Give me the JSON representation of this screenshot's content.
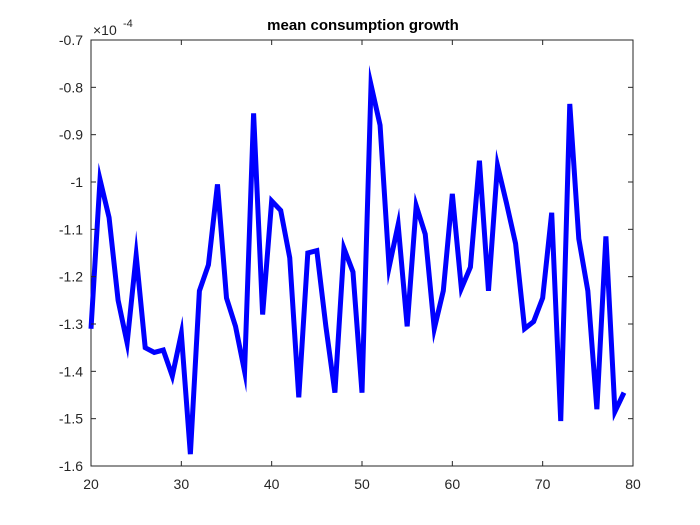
{
  "chart_data": {
    "type": "line",
    "title": "mean consumption growth",
    "xlabel": "",
    "ylabel": "",
    "y_exponent_label": "×10",
    "y_exponent_power": "-4",
    "xlim": [
      20,
      80
    ],
    "ylim": [
      -1.6,
      -0.7
    ],
    "grid": false,
    "x_ticks": [
      20,
      30,
      40,
      50,
      60,
      70,
      80
    ],
    "x_tick_labels": [
      "20",
      "30",
      "40",
      "50",
      "60",
      "70",
      "80"
    ],
    "y_ticks": [
      -1.6,
      -1.5,
      -1.4,
      -1.3,
      -1.2,
      -1.1,
      -1.0,
      -0.9,
      -0.8,
      -0.7
    ],
    "y_tick_labels": [
      "-1.6",
      "-1.5",
      "-1.4",
      "-1.3",
      "-1.2",
      "-1.1",
      "-1",
      "-0.9",
      "-0.8",
      "-0.7"
    ],
    "series": [
      {
        "color": "#0000ff",
        "x": [
          20,
          21,
          22,
          23,
          24,
          25,
          26,
          27,
          28,
          29,
          30,
          31,
          32,
          33,
          34,
          35,
          36,
          37,
          38,
          39,
          40,
          41,
          42,
          43,
          44,
          45,
          46,
          47,
          48,
          49,
          50,
          51,
          52,
          53,
          54,
          55,
          56,
          57,
          58,
          59,
          60,
          61,
          62,
          63,
          64,
          65,
          66,
          67,
          68,
          69,
          70,
          71,
          72,
          73,
          74,
          75,
          76,
          77,
          78,
          79
        ],
        "y": [
          -1.31,
          -0.995,
          -1.075,
          -1.25,
          -1.34,
          -1.155,
          -1.35,
          -1.36,
          -1.355,
          -1.41,
          -1.32,
          -1.575,
          -1.23,
          -1.175,
          -1.005,
          -1.245,
          -1.305,
          -1.4,
          -0.855,
          -1.28,
          -1.04,
          -1.06,
          -1.16,
          -1.455,
          -1.15,
          -1.145,
          -1.305,
          -1.445,
          -1.14,
          -1.19,
          -1.445,
          -0.795,
          -0.88,
          -1.18,
          -1.09,
          -1.305,
          -1.05,
          -1.11,
          -1.31,
          -1.23,
          -1.025,
          -1.225,
          -1.18,
          -0.955,
          -1.23,
          -0.965,
          -1.045,
          -1.13,
          -1.31,
          -1.295,
          -1.245,
          -1.065,
          -1.505,
          -0.835,
          -1.12,
          -1.23,
          -1.48,
          -1.115,
          -1.485,
          -1.445
        ]
      }
    ]
  }
}
